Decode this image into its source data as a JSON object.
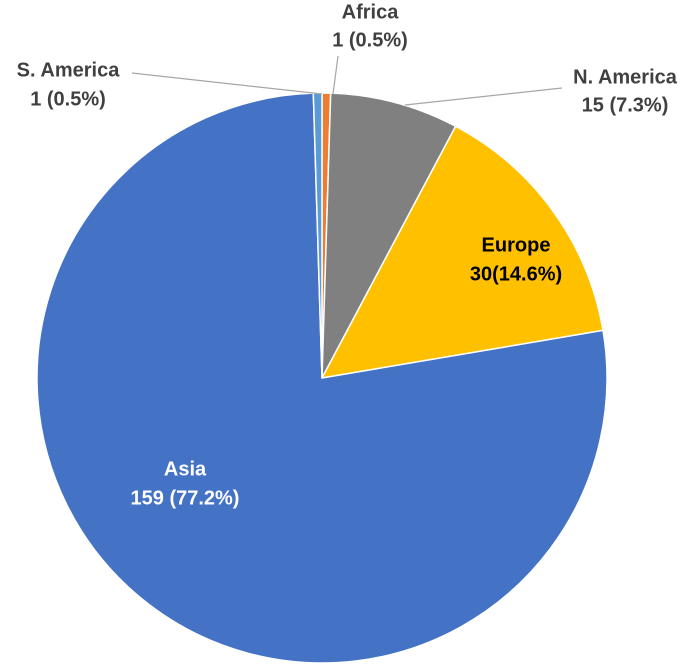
{
  "chart_data": {
    "type": "pie",
    "categories": [
      "Africa",
      "N. America",
      "Europe",
      "Asia",
      "S. America"
    ],
    "values": [
      1,
      15,
      30,
      159,
      1
    ],
    "value_labels": [
      "1 (0.5%)",
      "15 (7.3%)",
      "30(14.6%)",
      "159 (77.2%)",
      "1 (0.5%)"
    ],
    "colors": [
      "#ed7d31",
      "#808080",
      "#ffc000",
      "#4472c4",
      "#5b9bd5"
    ]
  }
}
